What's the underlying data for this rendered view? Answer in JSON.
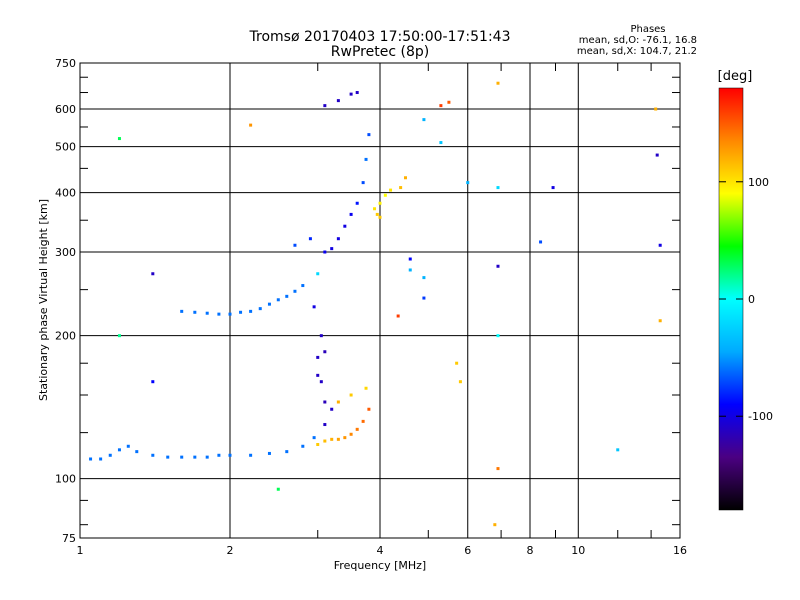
{
  "chart_data": {
    "type": "scatter",
    "title": "Tromsø 20170403 17:50:00-17:51:43",
    "subtitle": "RwPretec (8p)",
    "xlabel": "Frequency [MHz]",
    "ylabel": "Stationary phase Virtual Height [km]",
    "x_scale": "log",
    "y_scale": "log",
    "xlim": [
      1,
      16
    ],
    "ylim": [
      75,
      750
    ],
    "x_ticks": [
      "1",
      "2",
      "4",
      "6",
      "8",
      "10",
      "16"
    ],
    "y_ticks": [
      "75",
      "100",
      "200",
      "300",
      "400",
      "500",
      "600",
      "750"
    ],
    "grid": true,
    "phases_box": {
      "title": "Phases",
      "line1": "mean, sd,O: -76.1, 16.8",
      "line2": "mean, sd,X: 104.7, 21.2"
    },
    "colorbar": {
      "label": "[deg]",
      "range": [
        -180,
        180
      ],
      "ticks": [
        "100",
        "0",
        "-100"
      ],
      "colors": [
        "#000000",
        "#4b0082",
        "#0000ff",
        "#00aaff",
        "#00ffff",
        "#00ff00",
        "#ffff00",
        "#ff8800",
        "#ff0000"
      ]
    },
    "series": [
      {
        "points": [
          [
            1.05,
            110,
            -60
          ],
          [
            1.1,
            110,
            -60
          ],
          [
            1.15,
            112,
            -60
          ],
          [
            1.2,
            115,
            -60
          ],
          [
            1.25,
            117,
            -60
          ],
          [
            1.3,
            114,
            -60
          ],
          [
            1.4,
            112,
            -60
          ],
          [
            1.5,
            111,
            -60
          ],
          [
            1.6,
            111,
            -60
          ],
          [
            1.7,
            111,
            -60
          ],
          [
            1.8,
            111,
            -60
          ],
          [
            1.9,
            112,
            -60
          ],
          [
            2.0,
            112,
            -60
          ],
          [
            2.2,
            112,
            -60
          ],
          [
            2.4,
            113,
            -60
          ],
          [
            2.6,
            114,
            -60
          ],
          [
            2.8,
            117,
            -60
          ],
          [
            2.95,
            122,
            -60
          ],
          [
            1.6,
            225,
            -60
          ],
          [
            1.7,
            224,
            -60
          ],
          [
            1.8,
            223,
            -60
          ],
          [
            1.9,
            222,
            -60
          ],
          [
            2.0,
            222,
            -60
          ],
          [
            2.1,
            224,
            -60
          ],
          [
            2.2,
            225,
            -60
          ],
          [
            2.3,
            228,
            -60
          ],
          [
            2.4,
            233,
            -60
          ],
          [
            2.5,
            238,
            -60
          ],
          [
            2.6,
            242,
            -60
          ],
          [
            2.7,
            248,
            -60
          ],
          [
            2.8,
            255,
            -60
          ],
          [
            2.7,
            310,
            -70
          ],
          [
            2.9,
            320,
            -80
          ],
          [
            3.1,
            300,
            -95
          ],
          [
            3.2,
            305,
            -100
          ],
          [
            3.3,
            320,
            -100
          ],
          [
            3.4,
            340,
            -100
          ],
          [
            3.5,
            360,
            -95
          ],
          [
            3.6,
            380,
            -85
          ],
          [
            3.7,
            420,
            -70
          ],
          [
            3.75,
            470,
            -60
          ],
          [
            3.8,
            530,
            -70
          ],
          [
            3.1,
            610,
            -110
          ],
          [
            3.3,
            625,
            -110
          ],
          [
            3.5,
            645,
            -110
          ],
          [
            3.6,
            650,
            -110
          ],
          [
            3.0,
            180,
            -110
          ],
          [
            3.05,
            200,
            -110
          ],
          [
            3.1,
            185,
            -115
          ],
          [
            3.05,
            160,
            -110
          ],
          [
            3.1,
            145,
            -115
          ],
          [
            3.2,
            140,
            -110
          ],
          [
            2.95,
            230,
            -100
          ],
          [
            3.0,
            165,
            -110
          ],
          [
            3.1,
            130,
            -110
          ],
          [
            1.4,
            270,
            -110
          ],
          [
            1.4,
            160,
            -90
          ],
          [
            4.6,
            290,
            -90
          ],
          [
            4.9,
            240,
            -75
          ],
          [
            6.9,
            280,
            -110
          ],
          [
            8.4,
            315,
            -70
          ],
          [
            8.9,
            410,
            -100
          ],
          [
            14.4,
            480,
            -110
          ],
          [
            14.6,
            310,
            -100
          ],
          [
            12.0,
            115,
            -30
          ]
        ]
      },
      {
        "points": [
          [
            3.0,
            118,
            110
          ],
          [
            3.1,
            120,
            115
          ],
          [
            3.2,
            121,
            120
          ],
          [
            3.3,
            121,
            125
          ],
          [
            3.4,
            122,
            130
          ],
          [
            3.5,
            124,
            135
          ],
          [
            3.6,
            127,
            140
          ],
          [
            3.7,
            132,
            145
          ],
          [
            3.8,
            140,
            150
          ],
          [
            3.3,
            145,
            120
          ],
          [
            3.5,
            150,
            110
          ],
          [
            3.75,
            155,
            105
          ],
          [
            3.9,
            370,
            100
          ],
          [
            4.0,
            380,
            95
          ],
          [
            4.1,
            395,
            90
          ],
          [
            4.2,
            405,
            100
          ],
          [
            3.95,
            360,
            110
          ],
          [
            4.5,
            430,
            120
          ],
          [
            4.4,
            410,
            115
          ],
          [
            4.0,
            355,
            110
          ],
          [
            5.3,
            610,
            160
          ],
          [
            5.5,
            620,
            150
          ],
          [
            6.9,
            680,
            120
          ],
          [
            6.9,
            105,
            140
          ],
          [
            6.8,
            80,
            120
          ],
          [
            4.35,
            220,
            160
          ],
          [
            5.7,
            175,
            110
          ],
          [
            5.8,
            160,
            110
          ],
          [
            2.2,
            555,
            130
          ],
          [
            14.3,
            600,
            120
          ],
          [
            14.6,
            215,
            120
          ]
        ]
      },
      {
        "points": [
          [
            1.2,
            520,
            30
          ],
          [
            1.2,
            200,
            20
          ],
          [
            2.5,
            95,
            30
          ],
          [
            5.3,
            510,
            -30
          ],
          [
            6.9,
            410,
            -20
          ],
          [
            6.9,
            200,
            0
          ],
          [
            6.0,
            420,
            -40
          ],
          [
            4.6,
            275,
            -40
          ],
          [
            4.9,
            265,
            -40
          ],
          [
            3.0,
            270,
            -20
          ],
          [
            4.9,
            570,
            -40
          ]
        ]
      }
    ]
  }
}
